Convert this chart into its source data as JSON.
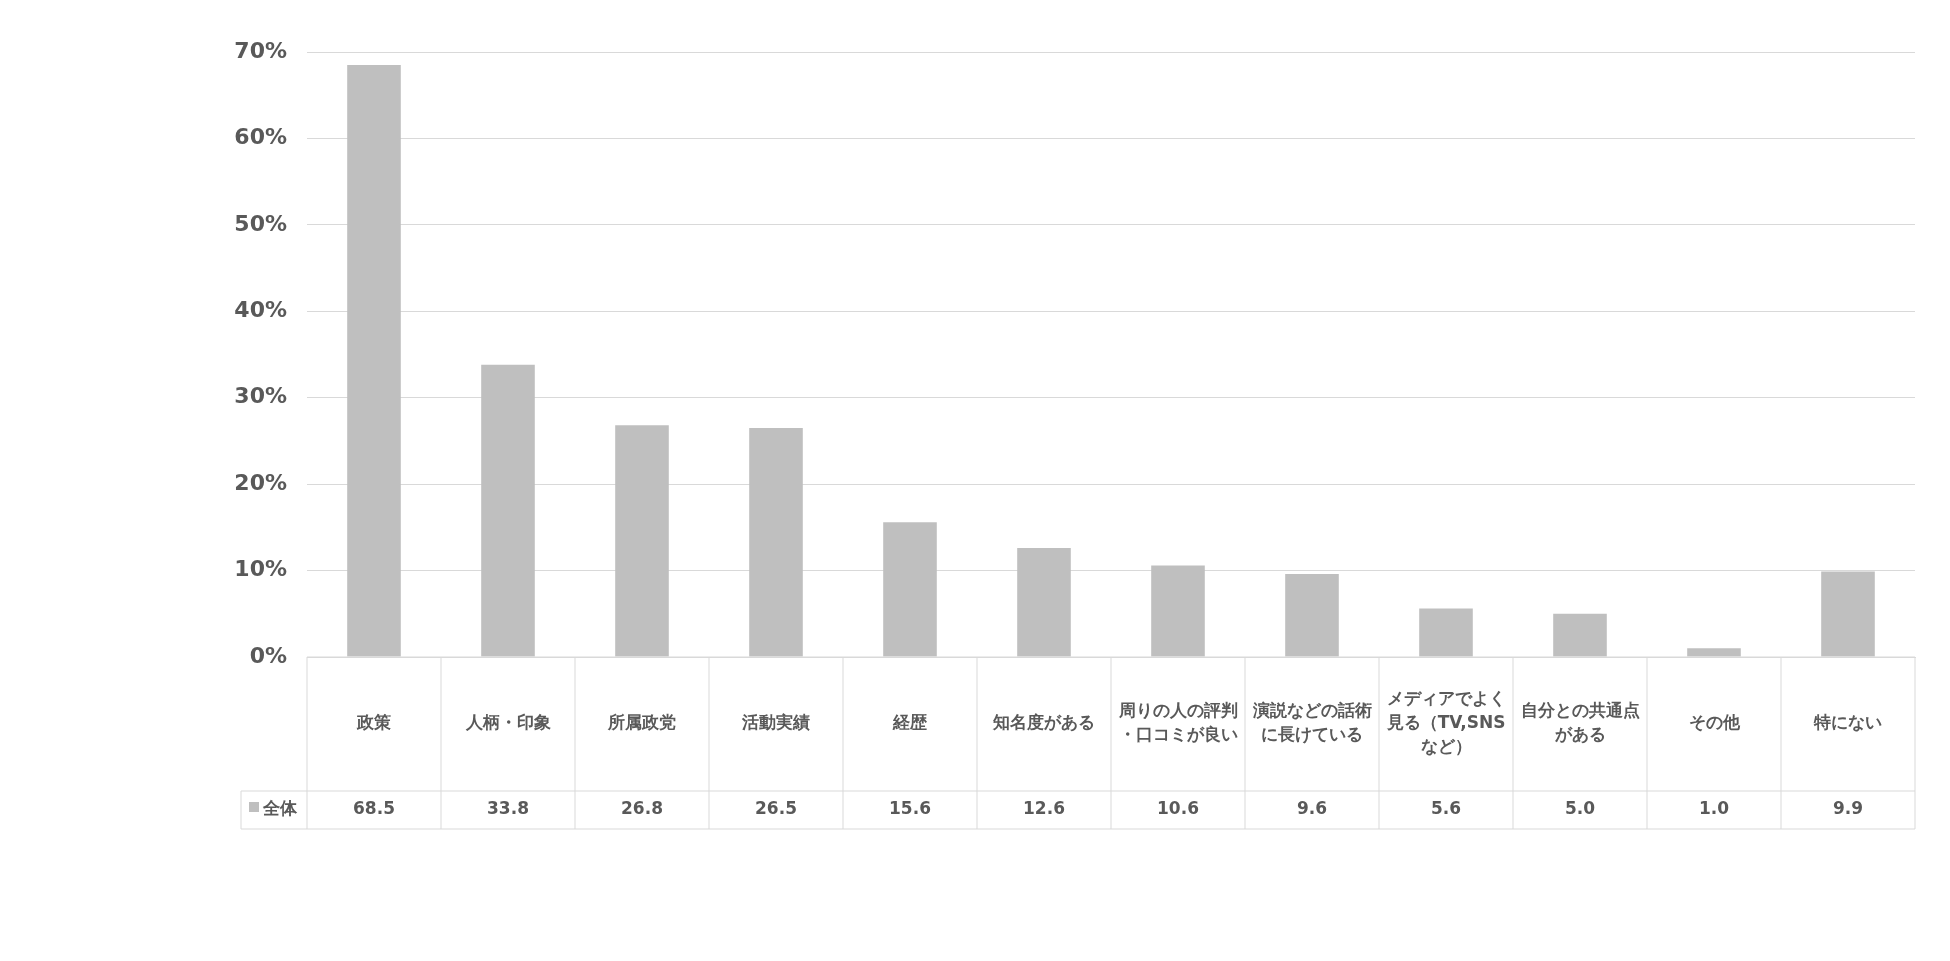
{
  "chart_data": {
    "type": "bar",
    "categories": [
      "政策",
      "人柄・印象",
      "所属政党",
      "活動実績",
      "経歴",
      "知名度がある",
      "周りの人の評判・口コミが良い",
      "演説などの話術に長けている",
      "メディアでよく見る（TV,SNSなど）",
      "自分との共通点がある",
      "その他",
      "特にない"
    ],
    "series": [
      {
        "name": "全体",
        "color": "#bfbfbf",
        "values": [
          68.5,
          33.8,
          26.8,
          26.5,
          15.6,
          12.6,
          10.6,
          9.6,
          5.6,
          5.0,
          1.0,
          9.9
        ],
        "value_labels": [
          "68.5",
          "33.8",
          "26.8",
          "26.5",
          "15.6",
          "12.6",
          "10.6",
          "9.6",
          "5.6",
          "5.0",
          "1.0",
          "9.9"
        ]
      }
    ],
    "ylim": [
      0,
      70
    ],
    "yticks": [
      {
        "value": 0,
        "label": "0%"
      },
      {
        "value": 10,
        "label": "10%"
      },
      {
        "value": 20,
        "label": "20%"
      },
      {
        "value": 30,
        "label": "30%"
      },
      {
        "value": 40,
        "label": "40%"
      },
      {
        "value": 50,
        "label": "50%"
      },
      {
        "value": 60,
        "label": "60%"
      },
      {
        "value": 70,
        "label": "70%"
      }
    ],
    "grid": "y",
    "legend": "bottom left"
  }
}
